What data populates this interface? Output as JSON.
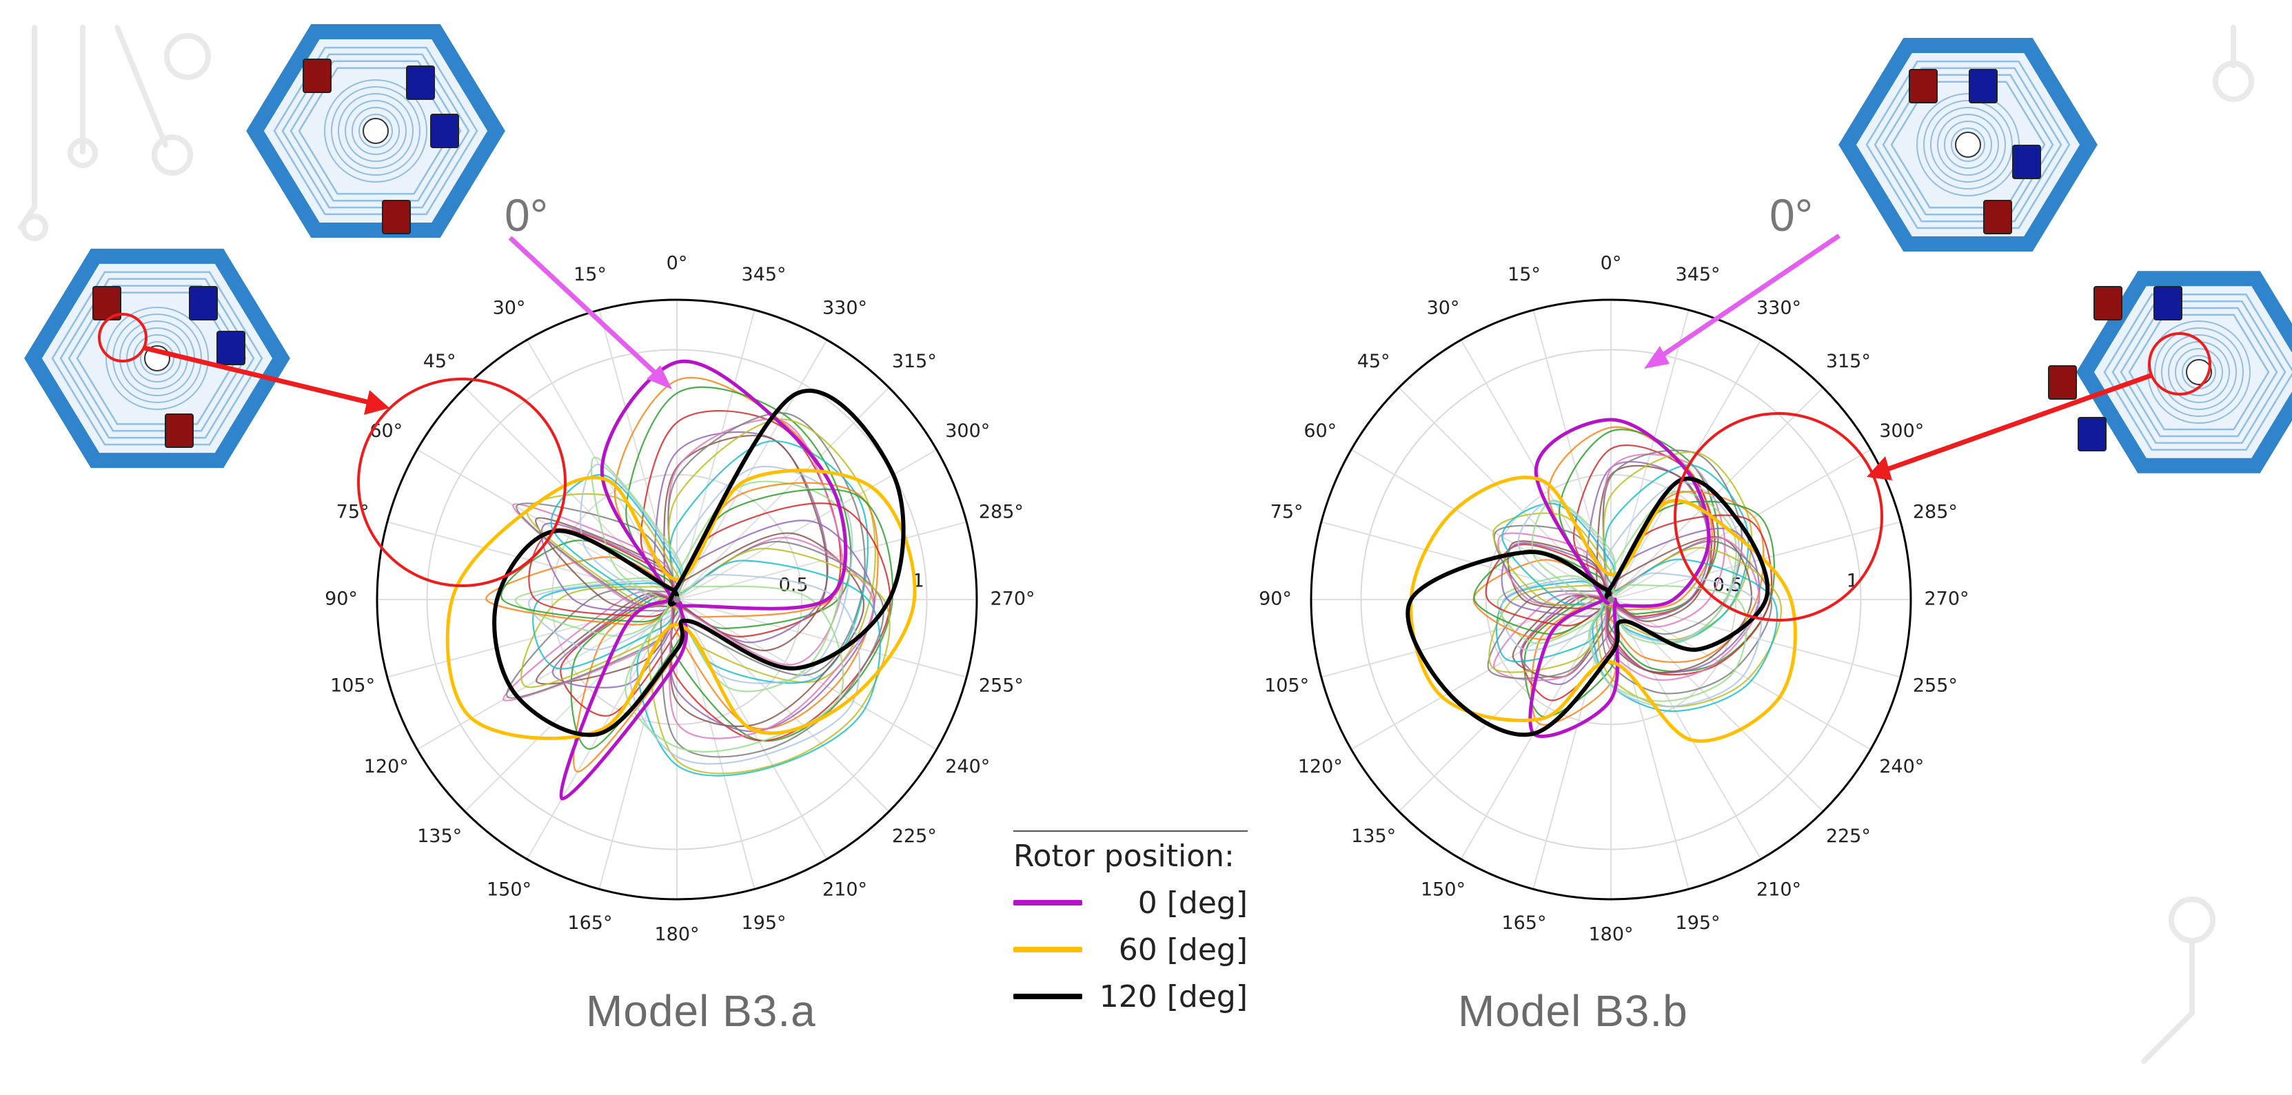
{
  "colors": {
    "magenta": "#b512c9",
    "orange": "#ffbf00",
    "black": "#000000",
    "red_annot": "#ee1c1c",
    "pink_arrow": "#e45ef0",
    "steel_blue": "#2f84cc",
    "coil_red": "#8e1111",
    "coil_blue": "#101a9a",
    "family": [
      "#1f77b4",
      "#ff7f0e",
      "#2ca02c",
      "#d62728",
      "#9467bd",
      "#8c564b",
      "#e377c2",
      "#7f7f7f",
      "#bcbd22",
      "#17becf",
      "#aec7e8",
      "#98df8a"
    ]
  },
  "annotations": {
    "zero_label": "0°"
  },
  "captions": {
    "left": "Model B3.a",
    "right": "Model B3.b"
  },
  "legend": {
    "title": "Rotor position:",
    "items": [
      {
        "label": "0 [deg]",
        "color": "#b512c9"
      },
      {
        "label": "60 [deg]",
        "color": "#ffbf00"
      },
      {
        "label": "120 [deg]",
        "color": "#000000"
      }
    ]
  },
  "chart_data": [
    {
      "type": "line",
      "projection": "polar",
      "title": "Model B3.a",
      "theta_direction": "counterclockwise",
      "theta_zero": "top",
      "angular_ticks": [
        0,
        15,
        30,
        45,
        60,
        75,
        90,
        105,
        120,
        135,
        150,
        165,
        180,
        195,
        210,
        225,
        240,
        255,
        270,
        285,
        300,
        315,
        330,
        345
      ],
      "angular_tick_labels": [
        "0°",
        "15°",
        "30°",
        "45°",
        "60°",
        "75°",
        "90°",
        "105°",
        "120°",
        "135°",
        "150°",
        "165°",
        "180°",
        "195°",
        "210°",
        "225°",
        "240°",
        "255°",
        "270°",
        "285°",
        "300°",
        "315°",
        "330°",
        "345°"
      ],
      "radial_ticks": [
        0.5,
        1
      ],
      "radial_tick_labels": [
        "0.5",
        "1"
      ],
      "rlim": [
        0,
        1.2
      ],
      "lobe_symmetry": 3,
      "family_rotor_positions_deg": [
        0,
        5,
        10,
        15,
        20,
        25,
        30,
        35,
        40,
        45,
        50,
        55,
        60,
        65,
        70,
        75,
        80,
        85,
        90,
        95,
        100,
        105,
        110,
        115,
        120
      ],
      "series": [
        {
          "name": "0 [deg]",
          "rotor_position_deg": 0,
          "highlighted": true,
          "samples_deg": [
            0,
            30,
            60,
            90,
            120,
            150,
            180,
            210,
            240,
            270,
            300,
            330
          ],
          "values": [
            0.95,
            0.6,
            0.03,
            0.03,
            0.25,
            0.92,
            0.25,
            0.03,
            0.05,
            0.6,
            0.75,
            0.82
          ]
        },
        {
          "name": "60 [deg]",
          "rotor_position_deg": 60,
          "highlighted": true,
          "samples_deg": [
            0,
            30,
            60,
            90,
            120,
            150,
            180,
            210,
            240,
            270,
            300,
            330
          ],
          "values": [
            0.08,
            0.55,
            0.7,
            0.9,
            0.95,
            0.6,
            0.1,
            0.6,
            0.8,
            0.95,
            0.9,
            0.55
          ]
        },
        {
          "name": "120 [deg]",
          "rotor_position_deg": 120,
          "highlighted": true,
          "samples_deg": [
            0,
            30,
            60,
            90,
            120,
            150,
            180,
            210,
            240,
            270,
            300,
            330
          ],
          "values": [
            0.05,
            0.05,
            0.55,
            0.72,
            0.75,
            0.62,
            0.2,
            0.1,
            0.55,
            0.85,
            1.0,
            0.95
          ]
        }
      ]
    },
    {
      "type": "line",
      "projection": "polar",
      "title": "Model B3.b",
      "theta_direction": "counterclockwise",
      "theta_zero": "top",
      "angular_ticks": [
        0,
        15,
        30,
        45,
        60,
        75,
        90,
        105,
        120,
        135,
        150,
        165,
        180,
        195,
        210,
        225,
        240,
        255,
        270,
        285,
        300,
        315,
        330,
        345
      ],
      "angular_tick_labels": [
        "0°",
        "15°",
        "30°",
        "45°",
        "60°",
        "75°",
        "90°",
        "105°",
        "120°",
        "135°",
        "150°",
        "165°",
        "180°",
        "195°",
        "210°",
        "225°",
        "240°",
        "255°",
        "270°",
        "285°",
        "300°",
        "315°",
        "330°",
        "345°"
      ],
      "radial_ticks": [
        0.5,
        1
      ],
      "radial_tick_labels": [
        "0.5",
        "1"
      ],
      "rlim": [
        0,
        1.2
      ],
      "lobe_symmetry": 3,
      "family_rotor_positions_deg": [
        0,
        5,
        10,
        15,
        20,
        25,
        30,
        35,
        40,
        45,
        50,
        55,
        60,
        65,
        70,
        75,
        80,
        85,
        90,
        95,
        100,
        105,
        110,
        115,
        120
      ],
      "series": [
        {
          "name": "0 [deg]",
          "rotor_position_deg": 0,
          "highlighted": true,
          "samples_deg": [
            0,
            30,
            60,
            90,
            120,
            150,
            180,
            210,
            240,
            270,
            300,
            330
          ],
          "values": [
            0.72,
            0.6,
            0.05,
            0.03,
            0.28,
            0.62,
            0.4,
            0.03,
            0.05,
            0.25,
            0.45,
            0.6
          ]
        },
        {
          "name": "60 [deg]",
          "rotor_position_deg": 60,
          "highlighted": true,
          "samples_deg": [
            0,
            30,
            60,
            90,
            120,
            150,
            180,
            210,
            240,
            270,
            300,
            330
          ],
          "values": [
            0.1,
            0.55,
            0.72,
            0.8,
            0.78,
            0.55,
            0.25,
            0.65,
            0.78,
            0.72,
            0.55,
            0.45
          ]
        },
        {
          "name": "120 [deg]",
          "rotor_position_deg": 120,
          "highlighted": true,
          "samples_deg": [
            0,
            30,
            60,
            90,
            120,
            150,
            180,
            210,
            240,
            270,
            300,
            330
          ],
          "values": [
            0.05,
            0.05,
            0.38,
            0.8,
            0.75,
            0.62,
            0.22,
            0.1,
            0.4,
            0.62,
            0.6,
            0.55
          ]
        }
      ]
    }
  ]
}
